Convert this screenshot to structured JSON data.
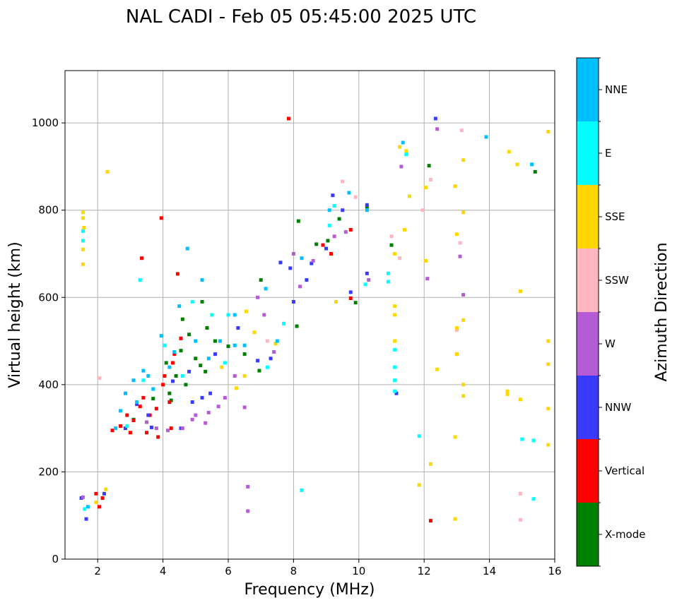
{
  "chart_data": {
    "type": "scatter",
    "title": "NAL CADI - Feb 05 05:45:00 2025 UTC",
    "xlabel": "Frequency (MHz)",
    "ylabel": "Virtual height (km)",
    "xlim": [
      1,
      16
    ],
    "ylim": [
      0,
      1120
    ],
    "xticks": [
      2,
      4,
      6,
      8,
      10,
      12,
      14,
      16
    ],
    "yticks": [
      0,
      200,
      400,
      600,
      800,
      1000
    ],
    "grid": true,
    "colorbar": {
      "title": "Azimuth Direction",
      "categories": [
        {
          "name": "X-mode",
          "color": "#008000"
        },
        {
          "name": "Vertical",
          "color": "#ff0000"
        },
        {
          "name": "NNW",
          "color": "#3a3aff"
        },
        {
          "name": "W",
          "color": "#b55bd6"
        },
        {
          "name": "SSW",
          "color": "#ffb6c1"
        },
        {
          "name": "SSE",
          "color": "#ffd700"
        },
        {
          "name": "E",
          "color": "#00ffff"
        },
        {
          "name": "NNE",
          "color": "#00bfff"
        }
      ]
    },
    "series": [
      {
        "name": "X-mode",
        "points": [
          [
            4.55,
            478
          ],
          [
            5.15,
            444
          ],
          [
            5.3,
            430
          ],
          [
            6.0,
            488
          ],
          [
            6.95,
            432
          ],
          [
            4.8,
            515
          ],
          [
            5.35,
            530
          ],
          [
            4.25,
            364
          ],
          [
            9.05,
            730
          ],
          [
            9.4,
            780
          ],
          [
            10.25,
            808
          ],
          [
            8.7,
            722
          ],
          [
            8.1,
            534
          ],
          [
            7.0,
            640
          ],
          [
            5.6,
            500
          ],
          [
            4.1,
            450
          ],
          [
            4.4,
            420
          ],
          [
            3.7,
            368
          ],
          [
            4.7,
            400
          ],
          [
            5.0,
            460
          ],
          [
            6.5,
            470
          ],
          [
            8.15,
            775
          ],
          [
            11.0,
            720
          ],
          [
            12.15,
            902
          ],
          [
            15.4,
            888
          ],
          [
            4.6,
            550
          ],
          [
            5.2,
            590
          ],
          [
            9.9,
            588
          ],
          [
            3.1,
            320
          ],
          [
            4.2,
            380
          ]
        ]
      },
      {
        "name": "Vertical",
        "points": [
          [
            1.95,
            150
          ],
          [
            2.15,
            140
          ],
          [
            2.05,
            120
          ],
          [
            2.7,
            305
          ],
          [
            2.45,
            295
          ],
          [
            3.1,
            318
          ],
          [
            3.3,
            350
          ],
          [
            3.6,
            330
          ],
          [
            4.2,
            360
          ],
          [
            4.0,
            400
          ],
          [
            3.85,
            280
          ],
          [
            4.25,
            300
          ],
          [
            3.4,
            370
          ],
          [
            3.0,
            290
          ],
          [
            3.5,
            290
          ],
          [
            4.05,
            420
          ],
          [
            4.35,
            470
          ],
          [
            4.55,
            506
          ],
          [
            3.35,
            690
          ],
          [
            3.95,
            782
          ],
          [
            4.45,
            654
          ],
          [
            7.85,
            1010
          ],
          [
            8.9,
            720
          ],
          [
            9.15,
            700
          ],
          [
            9.75,
            755
          ],
          [
            9.75,
            598
          ],
          [
            12.2,
            88
          ],
          [
            2.9,
            330
          ],
          [
            3.8,
            345
          ],
          [
            4.3,
            450
          ]
        ]
      },
      {
        "name": "NNW",
        "points": [
          [
            1.5,
            140
          ],
          [
            1.65,
            92
          ],
          [
            2.2,
            150
          ],
          [
            3.2,
            355
          ],
          [
            3.65,
            302
          ],
          [
            4.3,
            408
          ],
          [
            4.55,
            300
          ],
          [
            5.2,
            370
          ],
          [
            5.45,
            380
          ],
          [
            6.9,
            455
          ],
          [
            7.3,
            460
          ],
          [
            7.9,
            667
          ],
          [
            8.55,
            678
          ],
          [
            9.2,
            834
          ],
          [
            9.75,
            612
          ],
          [
            10.25,
            655
          ],
          [
            11.15,
            380
          ],
          [
            12.35,
            1010
          ],
          [
            3.55,
            330
          ],
          [
            2.85,
            300
          ],
          [
            4.8,
            430
          ],
          [
            5.6,
            470
          ],
          [
            6.3,
            530
          ],
          [
            7.6,
            680
          ],
          [
            8.4,
            640
          ],
          [
            9.5,
            800
          ],
          [
            9.0,
            712
          ],
          [
            8.0,
            590
          ],
          [
            10.25,
            812
          ],
          [
            4.9,
            360
          ]
        ]
      },
      {
        "name": "W",
        "points": [
          [
            1.55,
            142
          ],
          [
            3.8,
            300
          ],
          [
            4.15,
            295
          ],
          [
            4.6,
            300
          ],
          [
            5.0,
            330
          ],
          [
            5.4,
            336
          ],
          [
            5.9,
            370
          ],
          [
            6.5,
            348
          ],
          [
            6.6,
            166
          ],
          [
            6.6,
            110
          ],
          [
            8.0,
            700
          ],
          [
            8.6,
            684
          ],
          [
            9.25,
            740
          ],
          [
            9.6,
            750
          ],
          [
            12.1,
            643
          ],
          [
            12.4,
            986
          ],
          [
            11.3,
            900
          ],
          [
            13.1,
            694
          ],
          [
            13.2,
            606
          ],
          [
            13.0,
            470
          ],
          [
            7.4,
            475
          ],
          [
            6.2,
            420
          ],
          [
            5.7,
            350
          ],
          [
            6.9,
            600
          ],
          [
            8.2,
            625
          ],
          [
            10.3,
            640
          ],
          [
            4.9,
            320
          ],
          [
            5.3,
            312
          ],
          [
            7.1,
            560
          ],
          [
            3.5,
            314
          ]
        ]
      },
      {
        "name": "SSW",
        "points": [
          [
            2.05,
            415
          ],
          [
            9.5,
            866
          ],
          [
            11.25,
            690
          ],
          [
            11.95,
            800
          ],
          [
            13.15,
            983
          ],
          [
            13.1,
            725
          ],
          [
            14.95,
            150
          ],
          [
            14.95,
            90
          ],
          [
            13.0,
            525
          ],
          [
            9.9,
            830
          ],
          [
            11.0,
            740
          ],
          [
            12.2,
            870
          ],
          [
            7.2,
            500
          ]
        ]
      },
      {
        "name": "SSE",
        "points": [
          [
            1.55,
            795
          ],
          [
            1.55,
            782
          ],
          [
            1.58,
            760
          ],
          [
            1.55,
            710
          ],
          [
            1.55,
            676
          ],
          [
            2.3,
            888
          ],
          [
            6.25,
            392
          ],
          [
            6.55,
            568
          ],
          [
            6.5,
            420
          ],
          [
            7.45,
            494
          ],
          [
            11.1,
            700
          ],
          [
            11.1,
            580
          ],
          [
            11.1,
            560
          ],
          [
            11.1,
            500
          ],
          [
            11.25,
            945
          ],
          [
            11.4,
            755
          ],
          [
            11.45,
            936
          ],
          [
            11.55,
            832
          ],
          [
            12.05,
            684
          ],
          [
            12.2,
            218
          ],
          [
            12.05,
            852
          ],
          [
            12.4,
            435
          ],
          [
            11.85,
            170
          ],
          [
            12.95,
            855
          ],
          [
            13.0,
            745
          ],
          [
            13.0,
            530
          ],
          [
            13.0,
            470
          ],
          [
            12.95,
            280
          ],
          [
            12.95,
            92
          ],
          [
            13.2,
            915
          ],
          [
            13.2,
            795
          ],
          [
            13.2,
            548
          ],
          [
            13.2,
            400
          ],
          [
            13.2,
            374
          ],
          [
            14.6,
            934
          ],
          [
            14.55,
            385
          ],
          [
            14.55,
            378
          ],
          [
            14.85,
            905
          ],
          [
            14.95,
            614
          ],
          [
            14.95,
            366
          ],
          [
            15.8,
            980
          ],
          [
            15.8,
            500
          ],
          [
            15.8,
            447
          ],
          [
            15.8,
            345
          ],
          [
            15.8,
            262
          ],
          [
            1.95,
            130
          ],
          [
            2.25,
            160
          ],
          [
            5.8,
            440
          ],
          [
            6.8,
            520
          ],
          [
            9.3,
            590
          ]
        ]
      },
      {
        "name": "E",
        "points": [
          [
            1.55,
            752
          ],
          [
            1.55,
            730
          ],
          [
            1.6,
            115
          ],
          [
            3.3,
            640
          ],
          [
            4.05,
            490
          ],
          [
            4.9,
            590
          ],
          [
            5.5,
            560
          ],
          [
            6.0,
            560
          ],
          [
            7.2,
            440
          ],
          [
            7.7,
            540
          ],
          [
            8.25,
            158
          ],
          [
            9.1,
            765
          ],
          [
            9.25,
            810
          ],
          [
            10.2,
            630
          ],
          [
            10.9,
            655
          ],
          [
            10.9,
            636
          ],
          [
            11.1,
            480
          ],
          [
            11.1,
            440
          ],
          [
            11.1,
            410
          ],
          [
            11.1,
            385
          ],
          [
            11.45,
            928
          ],
          [
            11.85,
            282
          ],
          [
            15.0,
            275
          ],
          [
            15.35,
            272
          ],
          [
            15.35,
            138
          ],
          [
            15.3,
            905
          ],
          [
            2.9,
            305
          ],
          [
            3.4,
            410
          ],
          [
            4.6,
            420
          ],
          [
            5.9,
            450
          ]
        ]
      },
      {
        "name": "NNE",
        "points": [
          [
            1.7,
            120
          ],
          [
            2.55,
            300
          ],
          [
            2.85,
            380
          ],
          [
            3.1,
            410
          ],
          [
            3.4,
            432
          ],
          [
            3.7,
            390
          ],
          [
            3.95,
            512
          ],
          [
            4.2,
            440
          ],
          [
            4.5,
            580
          ],
          [
            4.75,
            712
          ],
          [
            5.0,
            500
          ],
          [
            5.2,
            640
          ],
          [
            5.4,
            460
          ],
          [
            5.75,
            500
          ],
          [
            6.2,
            490
          ],
          [
            6.2,
            560
          ],
          [
            6.5,
            490
          ],
          [
            7.15,
            620
          ],
          [
            7.5,
            500
          ],
          [
            8.25,
            690
          ],
          [
            9.1,
            800
          ],
          [
            9.7,
            840
          ],
          [
            10.25,
            800
          ],
          [
            11.35,
            955
          ],
          [
            13.9,
            968
          ],
          [
            15.3,
            905
          ],
          [
            2.7,
            340
          ],
          [
            3.2,
            360
          ],
          [
            3.55,
            420
          ],
          [
            4.35,
            475
          ]
        ]
      }
    ]
  }
}
